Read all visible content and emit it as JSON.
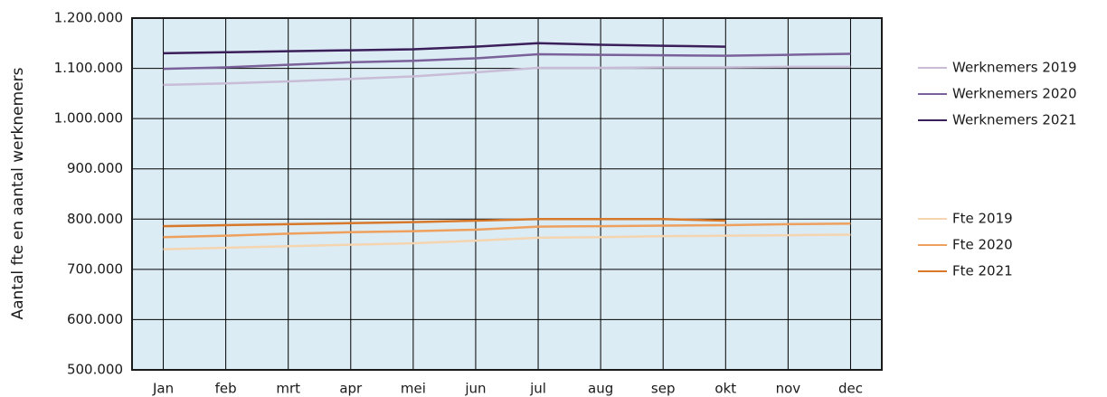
{
  "chart_data": {
    "type": "line",
    "y_label": "Aantal fte en aantal werknemers",
    "categories": [
      "Jan",
      "feb",
      "mrt",
      "apr",
      "mei",
      "jun",
      "jul",
      "aug",
      "sep",
      "okt",
      "nov",
      "dec"
    ],
    "ylim": [
      500000,
      1200000
    ],
    "yticks": [
      {
        "value": 500000,
        "label": "500.000"
      },
      {
        "value": 600000,
        "label": "600.000"
      },
      {
        "value": 700000,
        "label": "700.000"
      },
      {
        "value": 800000,
        "label": "800.000"
      },
      {
        "value": 900000,
        "label": "900.000"
      },
      {
        "value": 1000000,
        "label": "1.000.000"
      },
      {
        "value": 1100000,
        "label": "1.100.000"
      },
      {
        "value": 1200000,
        "label": "1.200.000"
      }
    ],
    "grid": true,
    "background": "#dcecf4",
    "series": [
      {
        "name": "Werknemers 2019",
        "color": "#c8bcd6",
        "values": [
          1067000,
          1070000,
          1074000,
          1079000,
          1084000,
          1092000,
          1101000,
          1101000,
          1102000,
          1102000,
          1103000,
          1103000
        ]
      },
      {
        "name": "Werknemers 2020",
        "color": "#7a619a",
        "values": [
          1099000,
          1102000,
          1107000,
          1112000,
          1115000,
          1120000,
          1128000,
          1127000,
          1126000,
          1125000,
          1127000,
          1129000
        ]
      },
      {
        "name": "Werknemers 2021",
        "color": "#3a1f5a",
        "values": [
          1130000,
          1132000,
          1134000,
          1136000,
          1138000,
          1143000,
          1150000,
          1147000,
          1145000,
          1143000,
          null,
          null
        ]
      },
      {
        "name": "Fte 2019",
        "color": "#f5d4b0",
        "values": [
          740000,
          743000,
          746000,
          749000,
          752000,
          757000,
          763000,
          764000,
          766000,
          767000,
          768000,
          769000
        ]
      },
      {
        "name": "Fte 2020",
        "color": "#eea05e",
        "values": [
          764000,
          767000,
          771000,
          774000,
          776000,
          779000,
          785000,
          786000,
          787000,
          788000,
          790000,
          791000
        ]
      },
      {
        "name": "Fte 2021",
        "color": "#d7782a",
        "values": [
          786000,
          788000,
          790000,
          792000,
          794000,
          797000,
          800000,
          800000,
          800000,
          797000,
          null,
          null
        ]
      }
    ]
  }
}
